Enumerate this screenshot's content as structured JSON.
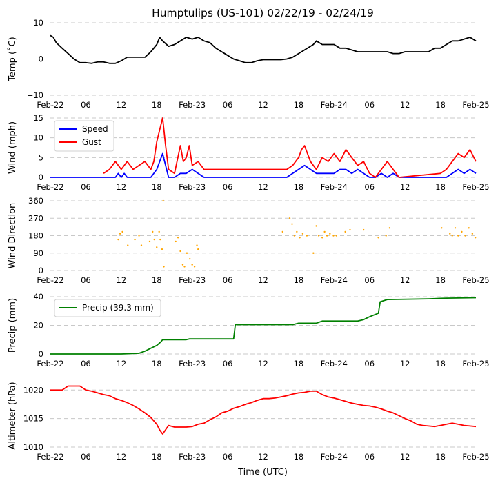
{
  "title": "Humptulips (US-101) 02/22/19 - 02/24/19",
  "xlabel": "Time (UTC)",
  "x_axis": {
    "unit": "hours since 2019-02-22 00:00 UTC",
    "range": [
      0,
      72
    ],
    "ticks": [
      {
        "h": 0,
        "label": "Feb-22"
      },
      {
        "h": 6,
        "label": "06"
      },
      {
        "h": 12,
        "label": "12"
      },
      {
        "h": 18,
        "label": "18"
      },
      {
        "h": 24,
        "label": "Feb-23"
      },
      {
        "h": 30,
        "label": "06"
      },
      {
        "h": 36,
        "label": "12"
      },
      {
        "h": 42,
        "label": "18"
      },
      {
        "h": 48,
        "label": "Feb-24"
      },
      {
        "h": 54,
        "label": "06"
      },
      {
        "h": 60,
        "label": "12"
      },
      {
        "h": 66,
        "label": "18"
      },
      {
        "h": 72,
        "label": "Feb-25"
      }
    ]
  },
  "colors": {
    "temp": "#000000",
    "speed": "#0000ff",
    "gust": "#ff0000",
    "direction": "#ffa500",
    "precip": "#008000",
    "altimeter": "#ff0000",
    "grid": "#c8c8c8"
  },
  "chart_data": [
    {
      "type": "line",
      "name": "temp",
      "ylabel": "Temp (˚C)",
      "ylim": [
        -10,
        10
      ],
      "yticks": [
        {
          "v": -10,
          "label": "−10"
        },
        {
          "v": 0,
          "label": "0"
        },
        {
          "v": 10,
          "label": "10"
        }
      ],
      "zero_line": true,
      "series": [
        {
          "name": "Temp",
          "color": "#000000",
          "x": [
            0,
            0.5,
            1,
            2,
            3,
            4,
            5,
            6,
            7,
            8,
            9,
            10,
            11,
            12,
            13,
            14,
            15,
            16,
            17,
            18,
            18.5,
            19,
            20,
            21,
            22,
            23,
            24,
            25,
            26,
            27,
            28,
            29,
            30,
            31,
            32,
            33,
            34,
            35,
            36,
            37,
            38,
            39,
            40,
            41,
            42,
            43,
            44,
            44.5,
            45,
            46,
            47,
            48,
            49,
            50,
            51,
            52,
            53,
            54,
            55,
            56,
            57,
            58,
            59,
            60,
            61,
            62,
            63,
            64,
            65,
            66,
            67,
            68,
            69,
            70,
            71,
            72
          ],
          "y": [
            6.5,
            6,
            4.5,
            3,
            1.5,
            0,
            -1,
            -1,
            -1.2,
            -0.8,
            -0.8,
            -1.2,
            -1.2,
            -0.5,
            0.5,
            0.5,
            0.5,
            0.5,
            2,
            4,
            6,
            5,
            3.5,
            4,
            5,
            6,
            5.5,
            6,
            5,
            4.5,
            3,
            2,
            1,
            0,
            -0.5,
            -1,
            -1,
            -0.5,
            -0.2,
            -0.2,
            -0.2,
            -0.2,
            0,
            0.5,
            1.5,
            2.5,
            3.5,
            4,
            5,
            4,
            4,
            4,
            3,
            3,
            2.5,
            2,
            2,
            2,
            2,
            2,
            2,
            1.5,
            1.5,
            2,
            2,
            2,
            2,
            2,
            3,
            3,
            4,
            5,
            5,
            5.5,
            6,
            5
          ]
        }
      ]
    },
    {
      "type": "line",
      "name": "wind",
      "ylabel": "Wind (mph)",
      "ylim": [
        0,
        15
      ],
      "yticks": [
        {
          "v": 0,
          "label": "0"
        },
        {
          "v": 5,
          "label": "5"
        },
        {
          "v": 10,
          "label": "10"
        },
        {
          "v": 15,
          "label": "15"
        }
      ],
      "legend": {
        "location": "upper-left",
        "entries": [
          "Speed",
          "Gust"
        ]
      },
      "series": [
        {
          "name": "Speed",
          "color": "#0000ff",
          "x": [
            0,
            11,
            11.5,
            12,
            12.5,
            13,
            16,
            17,
            18,
            18.5,
            19,
            19.5,
            20,
            21,
            22,
            23,
            24,
            25,
            26,
            40,
            41,
            42,
            43,
            44,
            45,
            46,
            47,
            48,
            49,
            50,
            51,
            52,
            53,
            54,
            55,
            56,
            57,
            58,
            59,
            67,
            68,
            69,
            70,
            71,
            72
          ],
          "y": [
            0,
            0,
            1,
            0,
            1,
            0,
            0,
            0,
            2,
            4,
            6,
            3,
            0,
            0,
            1,
            1,
            2,
            1,
            0,
            0,
            1,
            2,
            3,
            2,
            1,
            1,
            1,
            1,
            2,
            2,
            1,
            2,
            1,
            0,
            0,
            1,
            0,
            1,
            0,
            0,
            1,
            2,
            1,
            2,
            1
          ]
        },
        {
          "name": "Gust",
          "color": "#ff0000",
          "x": [
            9,
            10,
            11,
            12,
            13,
            14,
            15,
            16,
            17,
            17.5,
            18,
            18.5,
            19,
            19.5,
            20,
            21,
            22,
            22.5,
            23,
            23.5,
            24,
            25,
            26,
            40,
            41,
            42,
            42.5,
            43,
            43.5,
            44,
            45,
            46,
            47,
            48,
            49,
            50,
            51,
            52,
            53,
            54,
            55,
            56,
            57,
            58,
            59,
            66,
            67,
            68,
            69,
            70,
            71,
            72
          ],
          "y": [
            1,
            2,
            4,
            2,
            4,
            2,
            3,
            4,
            2,
            4,
            9,
            12,
            15,
            8,
            2,
            1,
            8,
            4,
            5,
            8,
            3,
            4,
            2,
            2,
            3,
            5,
            7,
            8,
            6,
            4,
            2,
            5,
            4,
            6,
            4,
            7,
            5,
            3,
            4,
            1,
            0,
            2,
            4,
            2,
            0,
            1,
            2,
            4,
            6,
            5,
            7,
            4
          ]
        }
      ]
    },
    {
      "type": "scatter",
      "name": "direction",
      "ylabel": "Wind Direction",
      "ylim": [
        0,
        360
      ],
      "yticks": [
        {
          "v": 0,
          "label": "0"
        },
        {
          "v": 90,
          "label": "90"
        },
        {
          "v": 180,
          "label": "180"
        },
        {
          "v": 270,
          "label": "270"
        },
        {
          "v": 360,
          "label": "360"
        }
      ],
      "series": [
        {
          "name": "Direction",
          "color": "#ffa500",
          "x": [
            11.5,
            11.8,
            12.2,
            13.1,
            14.3,
            15.0,
            15.4,
            16.8,
            17.3,
            17.6,
            18.0,
            18.4,
            18.6,
            18.9,
            19.1,
            19.2,
            21.2,
            21.6,
            22.0,
            22.4,
            22.7,
            23.1,
            23.6,
            24.0,
            24.4,
            24.8,
            25.0,
            39.3,
            40.5,
            40.9,
            41.3,
            41.7,
            42.2,
            42.7,
            43.4,
            44.5,
            45.0,
            45.4,
            46.0,
            46.4,
            46.8,
            47.3,
            47.9,
            48.4,
            49.9,
            50.7,
            53.0,
            55.5,
            56.8,
            57.4,
            66.2,
            67.6,
            68.0,
            68.5,
            69.0,
            69.6,
            70.2,
            70.8,
            71.4,
            71.9
          ],
          "y": [
            160,
            190,
            200,
            130,
            160,
            180,
            130,
            150,
            200,
            160,
            120,
            200,
            160,
            110,
            360,
            20,
            150,
            170,
            100,
            30,
            20,
            90,
            60,
            30,
            20,
            130,
            110,
            200,
            270,
            240,
            180,
            200,
            170,
            190,
            180,
            90,
            230,
            180,
            170,
            200,
            180,
            190,
            180,
            180,
            200,
            210,
            210,
            170,
            180,
            220,
            220,
            190,
            180,
            220,
            180,
            200,
            180,
            220,
            190,
            170
          ]
        }
      ]
    },
    {
      "type": "line",
      "name": "precip",
      "ylabel": "Precip (mm)",
      "ylim": [
        0,
        40
      ],
      "yticks": [
        {
          "v": 0,
          "label": "0"
        },
        {
          "v": 20,
          "label": "20"
        },
        {
          "v": 40,
          "label": "40"
        }
      ],
      "legend": {
        "location": "upper-left",
        "entries": [
          "Precip (39.3 mm)"
        ]
      },
      "series": [
        {
          "name": "Precip (39.3 mm)",
          "color": "#008000",
          "x": [
            0,
            12,
            15,
            16,
            17,
            18,
            18.7,
            19,
            23,
            23.5,
            31,
            31.3,
            35,
            41,
            42,
            45,
            46,
            52,
            53,
            54,
            55.5,
            55.8,
            57,
            64,
            67,
            72
          ],
          "y": [
            0,
            0,
            0.5,
            2,
            4,
            6,
            8.5,
            10,
            10,
            10.5,
            10.5,
            20.5,
            20.5,
            20.5,
            21.5,
            21.5,
            23,
            23,
            24,
            26,
            28.5,
            36.5,
            38,
            38.5,
            39,
            39.3
          ]
        }
      ]
    },
    {
      "type": "line",
      "name": "altimeter",
      "ylabel": "Altimeter (hPa)",
      "ylim": [
        1010,
        1021
      ],
      "yticks": [
        {
          "v": 1010,
          "label": "1010"
        },
        {
          "v": 1015,
          "label": "1015"
        },
        {
          "v": 1020,
          "label": "1020"
        }
      ],
      "series": [
        {
          "name": "Altimeter",
          "color": "#ff0000",
          "x": [
            0,
            2,
            3,
            5,
            6,
            7,
            8,
            9,
            10,
            11,
            12,
            13,
            14,
            15,
            16,
            17,
            18,
            18.5,
            19,
            20,
            21,
            22,
            23,
            24,
            25,
            26,
            27,
            28,
            29,
            30,
            31,
            32,
            33,
            34,
            35,
            36,
            37,
            38,
            39,
            40,
            41,
            42,
            43,
            44,
            45,
            46,
            47,
            48,
            49,
            50,
            51,
            52,
            53,
            54,
            55,
            56,
            57,
            58,
            59,
            60,
            61,
            62,
            63,
            64,
            65,
            66,
            67,
            68,
            69,
            70,
            71,
            72
          ],
          "y": [
            1020,
            1020,
            1020.7,
            1020.7,
            1020,
            1019.8,
            1019.5,
            1019.2,
            1019,
            1018.5,
            1018.2,
            1017.8,
            1017.3,
            1016.7,
            1016,
            1015.2,
            1014,
            1013,
            1012.3,
            1013.8,
            1013.5,
            1013.5,
            1013.5,
            1013.6,
            1014,
            1014.2,
            1014.8,
            1015.3,
            1016,
            1016.3,
            1016.8,
            1017.1,
            1017.5,
            1017.8,
            1018.2,
            1018.5,
            1018.5,
            1018.6,
            1018.8,
            1019,
            1019.3,
            1019.5,
            1019.6,
            1019.8,
            1019.8,
            1019.2,
            1018.8,
            1018.6,
            1018.3,
            1018,
            1017.7,
            1017.5,
            1017.3,
            1017.2,
            1017,
            1016.7,
            1016.3,
            1016,
            1015.5,
            1015,
            1014.6,
            1014,
            1013.8,
            1013.7,
            1013.6,
            1013.8,
            1014,
            1014.2,
            1014,
            1013.8,
            1013.7,
            1013.6
          ]
        }
      ]
    }
  ]
}
